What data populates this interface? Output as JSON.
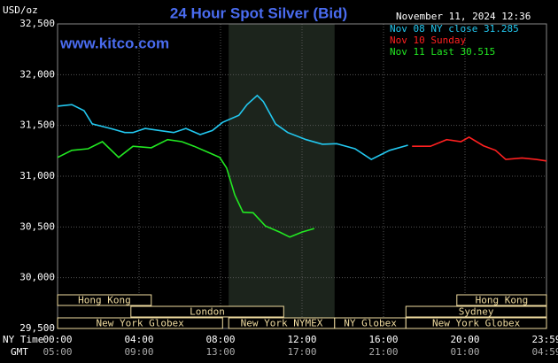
{
  "chart_data": {
    "type": "line",
    "title": "24 Hour Spot Silver (Bid)",
    "website": "www.kitco.com",
    "timestamp": "November 11, 2024 12:36",
    "y_label": "USD/oz",
    "x_label": "NY Time",
    "x2_label": "GMT",
    "xlim": [
      0,
      24
    ],
    "xticks": [
      {
        "value": 0,
        "label": "00:00"
      },
      {
        "value": 4,
        "label": "04:00"
      },
      {
        "value": 8,
        "label": "08:00"
      },
      {
        "value": 12,
        "label": "12:00"
      },
      {
        "value": 16,
        "label": "16:00"
      },
      {
        "value": 20,
        "label": "20:00"
      },
      {
        "value": 24,
        "label": "23:59"
      }
    ],
    "gmt_labels": [
      "05:00",
      "09:00",
      "13:00",
      "17:00",
      "21:00",
      "01:00",
      "04:59"
    ],
    "ylim": [
      29500,
      32500
    ],
    "yticks": [
      {
        "value": 29500,
        "label": "29,500"
      },
      {
        "value": 30000,
        "label": "30,000"
      },
      {
        "value": 30500,
        "label": "30,500"
      },
      {
        "value": 31000,
        "label": "31,000"
      },
      {
        "value": 31500,
        "label": "31,500"
      },
      {
        "value": 32000,
        "label": "32,000"
      },
      {
        "value": 32500,
        "label": "32,500"
      }
    ],
    "grid": true,
    "shaded_range": [
      8.4,
      13.6
    ],
    "sessions": [
      "Hong Kong",
      "London",
      "New York Globex",
      "New York NYMEX",
      "NY Globex",
      "New York Globex",
      "Hong Kong",
      "Sydney"
    ],
    "series": [
      {
        "name": "Nov 08 NY close 31.285",
        "color": "#22c8f0",
        "x": [
          0,
          0.7,
          1.3,
          1.7,
          2.6,
          3.3,
          3.7,
          4.3,
          5,
          5.7,
          6.3,
          7,
          7.6,
          8.1,
          8.9,
          9.3,
          9.8,
          10.1,
          10.7,
          11.3,
          12.2,
          13,
          13.7,
          14.6,
          15.4,
          16.3,
          17.2
        ],
        "values": [
          31690,
          31705,
          31645,
          31515,
          31470,
          31430,
          31430,
          31470,
          31450,
          31430,
          31470,
          31410,
          31450,
          31530,
          31600,
          31705,
          31795,
          31735,
          31515,
          31430,
          31360,
          31315,
          31320,
          31270,
          31165,
          31255,
          31305
        ]
      },
      {
        "name": "Nov 10 Sunday",
        "color": "#ff2020",
        "x": [
          17.4,
          18.3,
          19.1,
          19.8,
          20.2,
          20.9,
          21.5,
          22,
          22.8,
          23.5,
          24
        ],
        "values": [
          31295,
          31295,
          31360,
          31340,
          31385,
          31300,
          31255,
          31165,
          31180,
          31165,
          31150
        ]
      },
      {
        "name": "Nov 11 Last 30.515",
        "color": "#22e822",
        "x": [
          0,
          0.7,
          1.5,
          2.2,
          3,
          3.7,
          4.6,
          5.4,
          6.1,
          6.7,
          7.4,
          7.96,
          8.3,
          8.7,
          9.1,
          9.6,
          10.2,
          10.9,
          11.4,
          12,
          12.6
        ],
        "values": [
          31185,
          31255,
          31270,
          31340,
          31185,
          31295,
          31280,
          31360,
          31340,
          31295,
          31235,
          31185,
          31080,
          30815,
          30645,
          30640,
          30510,
          30450,
          30400,
          30450,
          30485
        ]
      }
    ]
  }
}
